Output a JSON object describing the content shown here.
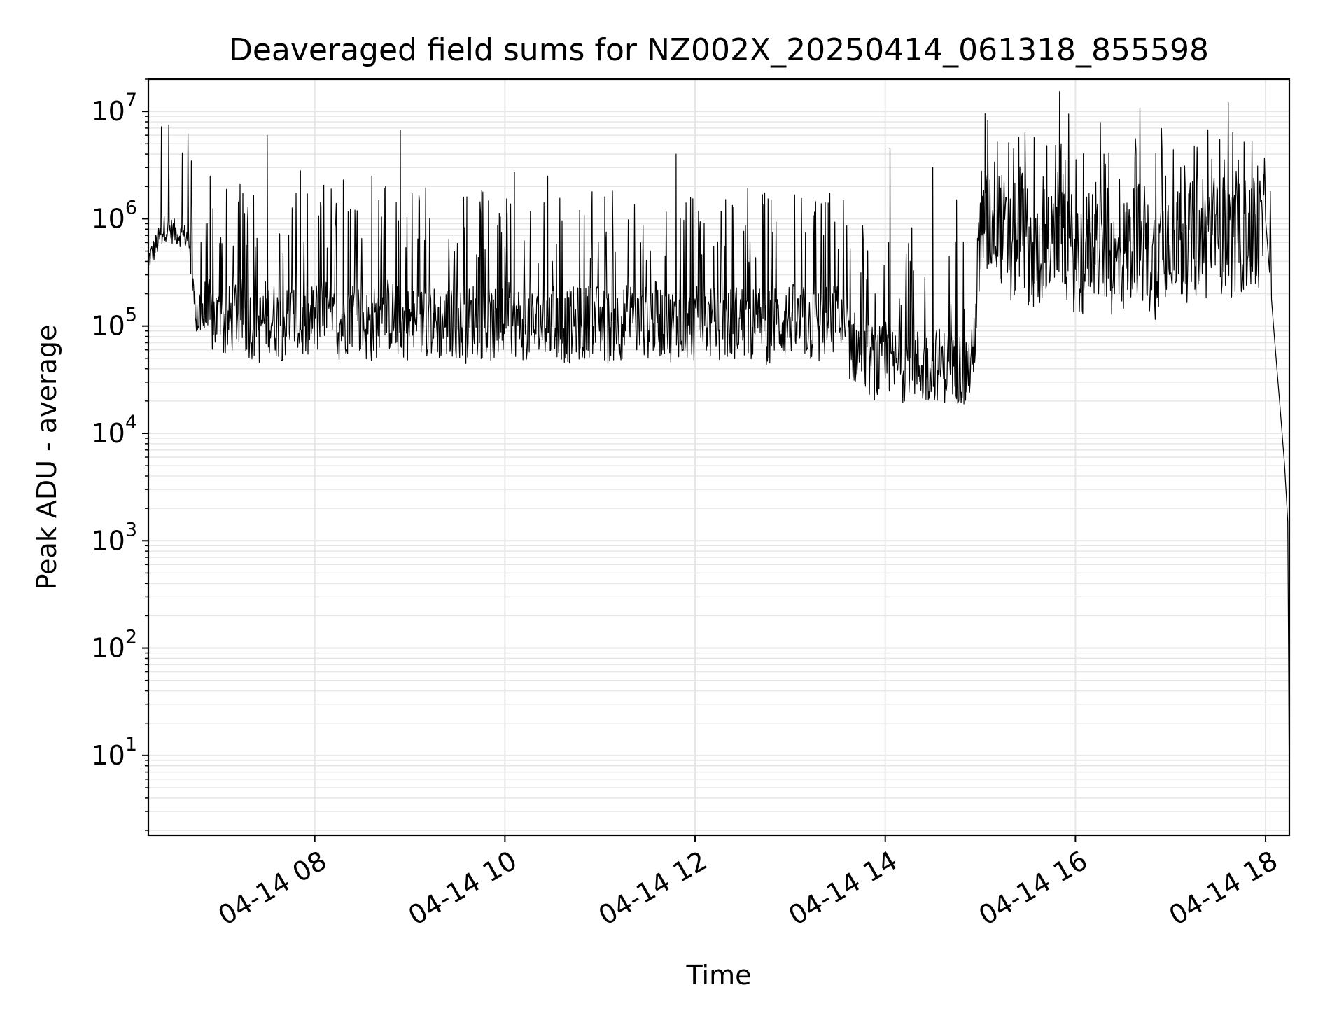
{
  "chart_data": {
    "type": "line",
    "title": "Deaveraged field sums for NZ002X_20250414_061318_855598",
    "xlabel": "Time",
    "ylabel": "Peak ADU - average",
    "yscale": "log",
    "ylim": [
      1.8,
      20000000
    ],
    "xlim": [
      "04-14 06:15",
      "04-14 18:15"
    ],
    "grid": true,
    "line_color": "#000000",
    "grid_color": "#e6e6e6",
    "x_ticks": [
      {
        "label": "04-14 08",
        "value": "04-14 08:00"
      },
      {
        "label": "04-14 10",
        "value": "04-14 10:00"
      },
      {
        "label": "04-14 12",
        "value": "04-14 12:00"
      },
      {
        "label": "04-14 14",
        "value": "04-14 14:00"
      },
      {
        "label": "04-14 16",
        "value": "04-14 16:00"
      },
      {
        "label": "04-14 18",
        "value": "04-14 18:00"
      }
    ],
    "y_ticks": [
      {
        "base": "10",
        "exp": "1",
        "value": 10
      },
      {
        "base": "10",
        "exp": "2",
        "value": 100
      },
      {
        "base": "10",
        "exp": "3",
        "value": 1000
      },
      {
        "base": "10",
        "exp": "4",
        "value": 10000
      },
      {
        "base": "10",
        "exp": "5",
        "value": 100000
      },
      {
        "base": "10",
        "exp": "6",
        "value": 1000000
      },
      {
        "base": "10",
        "exp": "7",
        "value": 10000000
      }
    ],
    "series": [
      {
        "x": [
          "04-14 06:15",
          "04-14 06:20",
          "04-14 06:25",
          "04-14 06:30",
          "04-14 06:35",
          "04-14 06:40",
          "04-14 06:45",
          "04-14 06:50",
          "04-14 06:55",
          "04-14 07:00",
          "04-14 07:05",
          "04-14 07:10",
          "04-14 07:15",
          "04-14 07:20",
          "04-14 07:25",
          "04-14 07:30",
          "04-14 07:35",
          "04-14 07:40",
          "04-14 07:45",
          "04-14 07:50",
          "04-14 07:55",
          "04-14 08:00",
          "04-14 08:05",
          "04-14 08:10",
          "04-14 08:15",
          "04-14 08:20",
          "04-14 08:25",
          "04-14 08:30",
          "04-14 08:35",
          "04-14 08:40",
          "04-14 08:45",
          "04-14 08:50",
          "04-14 08:55",
          "04-14 09:00",
          "04-14 09:05",
          "04-14 09:10",
          "04-14 09:15",
          "04-14 09:20",
          "04-14 09:25",
          "04-14 09:30",
          "04-14 09:35",
          "04-14 09:40",
          "04-14 09:45",
          "04-14 09:50",
          "04-14 09:55",
          "04-14 10:00",
          "04-14 10:05",
          "04-14 10:10",
          "04-14 10:15",
          "04-14 10:20",
          "04-14 10:25",
          "04-14 10:30",
          "04-14 10:35",
          "04-14 10:40",
          "04-14 10:45",
          "04-14 10:50",
          "04-14 10:55",
          "04-14 11:00",
          "04-14 11:05",
          "04-14 11:10",
          "04-14 11:15",
          "04-14 11:20",
          "04-14 11:25",
          "04-14 11:30",
          "04-14 11:35",
          "04-14 11:40",
          "04-14 11:45",
          "04-14 11:50",
          "04-14 11:55",
          "04-14 12:00",
          "04-14 12:05",
          "04-14 12:10",
          "04-14 12:15",
          "04-14 12:20",
          "04-14 12:25",
          "04-14 12:30",
          "04-14 12:35",
          "04-14 12:40",
          "04-14 12:45",
          "04-14 12:50",
          "04-14 12:55",
          "04-14 13:00",
          "04-14 13:05",
          "04-14 13:10",
          "04-14 13:15",
          "04-14 13:20",
          "04-14 13:25",
          "04-14 13:30",
          "04-14 13:35",
          "04-14 13:40",
          "04-14 13:45",
          "04-14 13:50",
          "04-14 13:55",
          "04-14 14:00",
          "04-14 14:05",
          "04-14 14:10",
          "04-14 14:15",
          "04-14 14:20",
          "04-14 14:25",
          "04-14 14:30",
          "04-14 14:35",
          "04-14 14:40",
          "04-14 14:45",
          "04-14 14:50",
          "04-14 14:55",
          "04-14 15:00",
          "04-14 15:05",
          "04-14 15:10",
          "04-14 15:15",
          "04-14 15:20",
          "04-14 15:25",
          "04-14 15:30",
          "04-14 15:35",
          "04-14 15:40",
          "04-14 15:45",
          "04-14 15:50",
          "04-14 15:55",
          "04-14 16:00",
          "04-14 16:05",
          "04-14 16:10",
          "04-14 16:15",
          "04-14 16:20",
          "04-14 16:25",
          "04-14 16:30",
          "04-14 16:35",
          "04-14 16:40",
          "04-14 16:45",
          "04-14 16:50",
          "04-14 16:55",
          "04-14 17:00",
          "04-14 17:05",
          "04-14 17:10",
          "04-14 17:15",
          "04-14 17:20",
          "04-14 17:25",
          "04-14 17:30",
          "04-14 17:35",
          "04-14 17:40",
          "04-14 17:45",
          "04-14 17:50",
          "04-14 17:55",
          "04-14 18:00",
          "04-14 18:05",
          "04-14 18:10",
          "04-14 18:12",
          "04-14 18:14",
          "04-14 18:15"
        ],
        "y": [
          400000,
          550000,
          800000,
          750000,
          700000,
          650000,
          130000,
          120000,
          110000,
          100000,
          95000,
          130000,
          110000,
          100000,
          90000,
          120000,
          105000,
          95000,
          110000,
          100000,
          90000,
          110000,
          120000,
          100000,
          95000,
          110000,
          130000,
          100000,
          90000,
          105000,
          120000,
          110000,
          95000,
          100000,
          90000,
          110000,
          100000,
          95000,
          105000,
          100000,
          90000,
          110000,
          100000,
          95000,
          90000,
          100000,
          110000,
          95000,
          100000,
          90000,
          105000,
          100000,
          95000,
          90000,
          100000,
          95000,
          110000,
          100000,
          90000,
          95000,
          100000,
          105000,
          95000,
          100000,
          110000,
          100000,
          95000,
          105000,
          100000,
          95000,
          110000,
          100000,
          90000,
          95000,
          100000,
          105000,
          95000,
          100000,
          90000,
          95000,
          100000,
          110000,
          95000,
          100000,
          90000,
          95000,
          100000,
          110000,
          70000,
          60000,
          50000,
          45000,
          40000,
          45000,
          40000,
          38000,
          45000,
          40000,
          37000,
          42000,
          40000,
          38000,
          40000,
          35000,
          40000,
          500000,
          800000,
          1000000,
          600000,
          400000,
          900000,
          500000,
          350000,
          600000,
          450000,
          800000,
          500000,
          400000,
          350000,
          600000,
          450000,
          500000,
          300000,
          400000,
          500000,
          600000,
          400000,
          350000,
          500000,
          700000,
          550000,
          500000,
          600000,
          450000,
          650000,
          550000,
          700000,
          500000,
          600000,
          650000,
          550000,
          1000000,
          100000,
          12000,
          5000,
          1500,
          4
        ],
        "spikes": [
          [
            6.9,
            2500000
          ],
          [
            7.5,
            6000000
          ],
          [
            7.85,
            2800000
          ],
          [
            8.3,
            2300000
          ],
          [
            8.6,
            2500000
          ],
          [
            8.9,
            6700000
          ],
          [
            9.6,
            1600000
          ],
          [
            10.1,
            2700000
          ],
          [
            10.45,
            2500000
          ],
          [
            11.05,
            1600000
          ],
          [
            11.8,
            4000000
          ],
          [
            12.8,
            1500000
          ],
          [
            13.4,
            1400000
          ],
          [
            14.05,
            4500000
          ],
          [
            14.5,
            3000000
          ],
          [
            14.75,
            1500000
          ],
          [
            15.05,
            9500000
          ],
          [
            15.35,
            4500000
          ],
          [
            15.7,
            4800000
          ],
          [
            15.85,
            5000000
          ],
          [
            16.3,
            4000000
          ],
          [
            16.95,
            2500000
          ],
          [
            17.55,
            1800000
          ],
          [
            17.85,
            1900000
          ],
          [
            18.05,
            1800000
          ]
        ]
      }
    ]
  }
}
